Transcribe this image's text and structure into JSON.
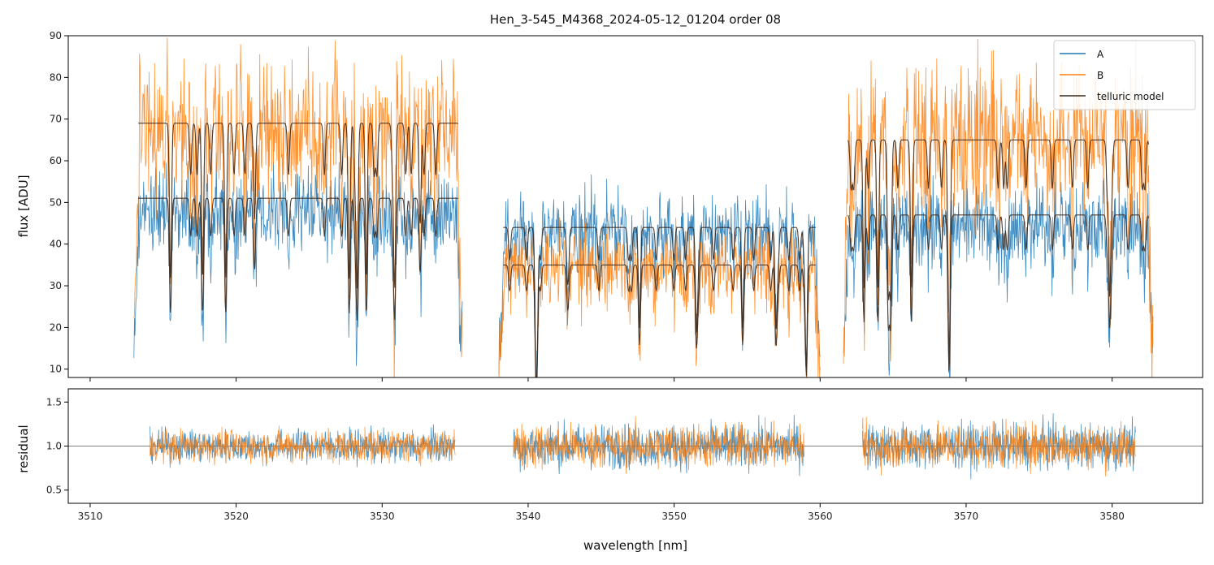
{
  "chart_data": [
    {
      "type": "line",
      "title": "Hen_3-545_M4368_2024-05-12_01204  order 08",
      "xlabel": "",
      "ylabel": "flux [ADU]",
      "xlim": [
        3508.5,
        3586.2
      ],
      "ylim": [
        8,
        90
      ],
      "yticks": [
        10,
        20,
        30,
        40,
        50,
        60,
        70,
        80,
        90
      ],
      "xticks": [
        3510,
        3520,
        3530,
        3540,
        3550,
        3560,
        3570,
        3580
      ],
      "segments": [
        {
          "x_range": [
            3513.0,
            3535.5
          ],
          "A_level": 48,
          "B_level": 68,
          "model_A": 51,
          "model_B": 69
        },
        {
          "x_range": [
            3538.0,
            3560.0
          ],
          "A_level": 43,
          "B_level": 35,
          "model_A": 44,
          "model_B": 35
        },
        {
          "x_range": [
            3561.6,
            3582.8
          ],
          "A_level": 45,
          "B_level": 66,
          "model_A": 47,
          "model_B": 65
        }
      ],
      "series": [
        {
          "name": "A",
          "color": "#1f77b4"
        },
        {
          "name": "B",
          "color": "#ff7f0e"
        },
        {
          "name": "telluric model",
          "color": "#3d2b1f"
        }
      ],
      "legend": "top-right"
    },
    {
      "type": "line",
      "xlabel": "wavelength [nm]",
      "ylabel": "residual",
      "xlim": [
        3508.5,
        3586.2
      ],
      "ylim": [
        0.35,
        1.65
      ],
      "yticks": [
        0.5,
        1.0,
        1.5
      ],
      "ytick_labels": [
        "0.5",
        "1.0",
        "1.5"
      ],
      "xticks": [
        3510,
        3520,
        3530,
        3540,
        3550,
        3560,
        3570,
        3580
      ],
      "reference_line": 1.0,
      "segments": [
        {
          "x_range": [
            3514.1,
            3535.0
          ],
          "spread": 0.22
        },
        {
          "x_range": [
            3539.0,
            3558.9
          ],
          "spread": 0.3
        },
        {
          "x_range": [
            3562.9,
            3581.6
          ],
          "spread": 0.3
        }
      ],
      "series": [
        {
          "name": "A",
          "color": "#1f77b4"
        },
        {
          "name": "B",
          "color": "#ff7f0e"
        }
      ]
    }
  ]
}
